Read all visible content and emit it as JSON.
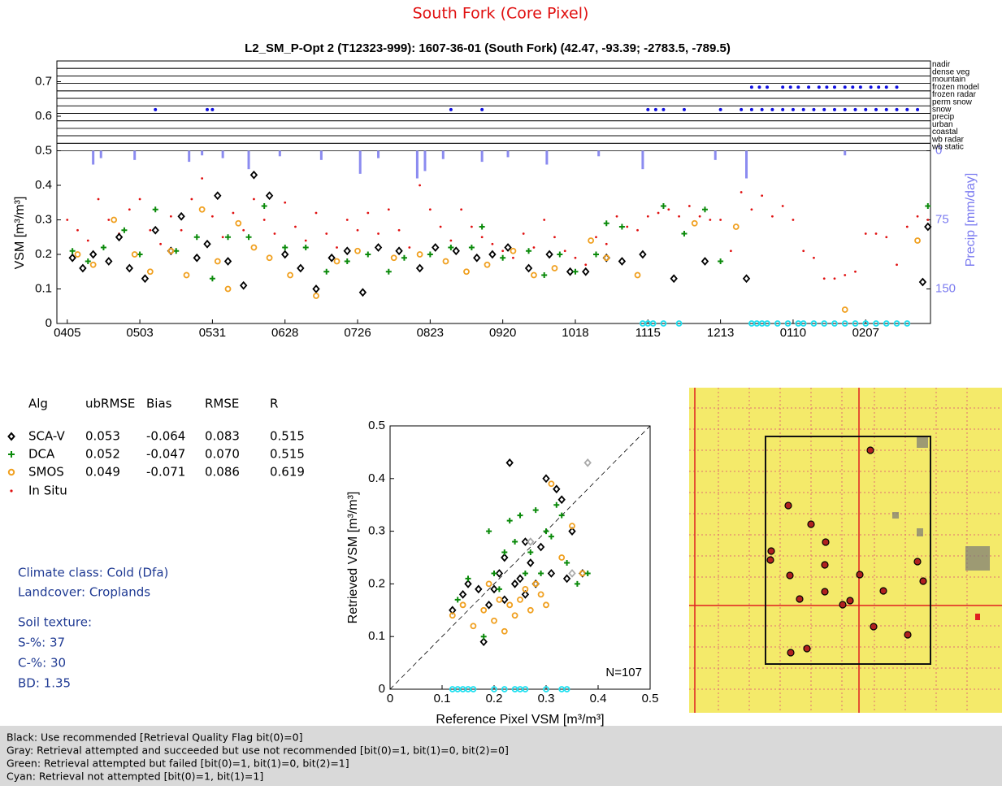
{
  "page_title": "South Fork (Core Pixel)",
  "stats": {
    "header": [
      "Alg",
      "ubRMSE",
      "Bias",
      "RMSE",
      "R"
    ],
    "rows": [
      [
        "SCA-V",
        "0.053",
        "-0.064",
        "0.083",
        "0.515"
      ],
      [
        "DCA",
        "0.052",
        "-0.047",
        "0.070",
        "0.515"
      ],
      [
        "SMOS",
        "0.049",
        "-0.071",
        "0.086",
        "0.619"
      ],
      [
        "In Situ"
      ]
    ]
  },
  "site_info": [
    "Climate class: Cold (Dfa)",
    "Landcover: Croplands",
    "Soil texture:",
    "S-%: 37",
    "C-%: 30",
    "BD: 1.35"
  ],
  "footer": [
    "Black: Use recommended [Retrieval Quality Flag bit(0)=0]",
    "Gray: Retrieval attempted and succeeded but use not recommended [bit(0)=1, bit(1)=0, bit(2)=0]",
    "Green: Retrieval attempted but failed [bit(0)=1, bit(1)=0, bit(2)=1]",
    "Cyan: Retrieval not attempted [bit(0)=1, bit(1)=1]"
  ],
  "chart_data": [
    {
      "type": "scatter",
      "title": "L2_SM_P-Opt 2 (T12323-999): 1607-36-01 (South Fork) (42.47, -93.39; -2783.5, -789.5)",
      "ylabel": "VSM [m³/m³]",
      "y2label": "Precip [mm/day]",
      "xlim": [
        -4,
        333
      ],
      "ylim": [
        0,
        0.76
      ],
      "y2lim": [
        187.5,
        -97.5
      ],
      "xticks": [
        {
          "value": 0,
          "label": "0405"
        },
        {
          "value": 28,
          "label": "0503"
        },
        {
          "value": 56,
          "label": "0531"
        },
        {
          "value": 84,
          "label": "0628"
        },
        {
          "value": 112,
          "label": "0726"
        },
        {
          "value": 140,
          "label": "0823"
        },
        {
          "value": 168,
          "label": "0920"
        },
        {
          "value": 196,
          "label": "1018"
        },
        {
          "value": 224,
          "label": "1115"
        },
        {
          "value": 252,
          "label": "1213"
        },
        {
          "value": 280,
          "label": "0110"
        },
        {
          "value": 308,
          "label": "0207"
        }
      ],
      "yticks": [
        0,
        0.1,
        0.2,
        0.3,
        0.4,
        0.5,
        0.6,
        0.7
      ],
      "y2ticks": [
        0,
        75,
        150
      ],
      "y2color": "#7b7bf0",
      "flag_rows": [
        {
          "label": "nadir",
          "x": []
        },
        {
          "label": "dense veg",
          "x": []
        },
        {
          "label": "mountain",
          "x": []
        },
        {
          "label": "frozen model",
          "x": [
            264,
            267,
            270,
            276,
            279,
            282,
            286,
            290,
            293,
            296,
            300,
            303,
            306,
            310,
            313,
            316,
            320
          ]
        },
        {
          "label": "frozen radar",
          "x": []
        },
        {
          "label": "perm snow",
          "x": []
        },
        {
          "label": "snow",
          "x": [
            34,
            54,
            56,
            148,
            160,
            224,
            227,
            230,
            238,
            252,
            260,
            264,
            268,
            272,
            276,
            280,
            284,
            288,
            292,
            296,
            300,
            304,
            308,
            312,
            316,
            320,
            324,
            328
          ]
        },
        {
          "label": "precip",
          "x": []
        },
        {
          "label": "urban",
          "x": []
        },
        {
          "label": "coastal",
          "x": []
        },
        {
          "label": "wb radar",
          "x": []
        },
        {
          "label": "wb static",
          "x": []
        }
      ],
      "flag_color": "#1010e0",
      "series": [
        {
          "marker": "bar",
          "axis": "y2",
          "color": "#8b8bf0",
          "x": [
            10,
            13,
            26,
            47,
            52,
            60,
            70,
            82,
            98,
            113,
            120,
            135,
            138,
            145,
            160,
            170,
            185,
            205,
            222,
            250,
            262,
            300
          ],
          "values": [
            15,
            8,
            10,
            12,
            5,
            8,
            20,
            6,
            10,
            25,
            8,
            30,
            22,
            9,
            12,
            7,
            15,
            6,
            20,
            10,
            30,
            5
          ]
        },
        {
          "marker": "dot",
          "color": "#e01010",
          "x": [
            0,
            4,
            8,
            12,
            16,
            20,
            24,
            28,
            32,
            36,
            40,
            44,
            48,
            52,
            56,
            60,
            64,
            68,
            72,
            76,
            80,
            84,
            88,
            92,
            96,
            100,
            104,
            108,
            112,
            116,
            120,
            124,
            128,
            132,
            136,
            140,
            144,
            148,
            152,
            156,
            160,
            164,
            168,
            172,
            176,
            180,
            184,
            188,
            192,
            196,
            200,
            204,
            208,
            212,
            216,
            220,
            224,
            228,
            232,
            236,
            240,
            244,
            248,
            252,
            256,
            260,
            264,
            268,
            272,
            276,
            280,
            284,
            288,
            292,
            296,
            300,
            304,
            308,
            312,
            316,
            320,
            324,
            328,
            332
          ],
          "values": [
            0.3,
            0.27,
            0.24,
            0.36,
            0.3,
            0.26,
            0.33,
            0.36,
            0.27,
            0.23,
            0.31,
            0.27,
            0.36,
            0.42,
            0.31,
            0.25,
            0.32,
            0.27,
            0.36,
            0.3,
            0.26,
            0.35,
            0.28,
            0.24,
            0.32,
            0.26,
            0.22,
            0.3,
            0.27,
            0.32,
            0.26,
            0.33,
            0.27,
            0.22,
            0.4,
            0.33,
            0.28,
            0.24,
            0.33,
            0.28,
            0.25,
            0.23,
            0.21,
            0.19,
            0.26,
            0.22,
            0.3,
            0.25,
            0.21,
            0.19,
            0.17,
            0.25,
            0.23,
            0.31,
            0.28,
            0.27,
            0.31,
            0.32,
            0.33,
            0.31,
            0.34,
            0.31,
            0.3,
            0.3,
            0.21,
            0.38,
            0.33,
            0.37,
            0.31,
            0.34,
            0.3,
            0.21,
            0.19,
            0.13,
            0.13,
            0.14,
            0.15,
            0.26,
            0.26,
            0.25,
            0.17,
            0.28,
            0.31,
            0.3
          ]
        },
        {
          "marker": "diamond",
          "color": "#000000",
          "x": [
            2,
            6,
            10,
            16,
            20,
            24,
            30,
            34,
            40,
            44,
            50,
            54,
            58,
            62,
            68,
            72,
            78,
            84,
            90,
            96,
            102,
            108,
            114,
            120,
            128,
            136,
            142,
            150,
            158,
            164,
            170,
            178,
            186,
            194,
            200,
            208,
            214,
            222,
            234,
            246,
            262,
            330,
            332
          ],
          "values": [
            0.19,
            0.16,
            0.2,
            0.18,
            0.25,
            0.16,
            0.13,
            0.27,
            0.21,
            0.31,
            0.19,
            0.23,
            0.37,
            0.18,
            0.11,
            0.43,
            0.37,
            0.2,
            0.16,
            0.1,
            0.19,
            0.21,
            0.09,
            0.22,
            0.21,
            0.16,
            0.22,
            0.21,
            0.19,
            0.2,
            0.22,
            0.16,
            0.2,
            0.15,
            0.15,
            0.19,
            0.18,
            0.2,
            0.13,
            0.18,
            0.13,
            0.12,
            0.28
          ]
        },
        {
          "marker": "plus",
          "color": "#0a8a0a",
          "x": [
            2,
            8,
            14,
            22,
            28,
            34,
            42,
            50,
            56,
            62,
            70,
            76,
            84,
            92,
            100,
            108,
            116,
            124,
            130,
            140,
            148,
            156,
            160,
            168,
            178,
            184,
            190,
            196,
            204,
            208,
            214,
            230,
            238,
            246,
            252,
            332
          ],
          "values": [
            0.21,
            0.18,
            0.22,
            0.27,
            0.2,
            0.33,
            0.21,
            0.25,
            0.13,
            0.25,
            0.25,
            0.34,
            0.22,
            0.22,
            0.15,
            0.18,
            0.2,
            0.15,
            0.19,
            0.2,
            0.22,
            0.22,
            0.28,
            0.19,
            0.21,
            0.14,
            0.2,
            0.15,
            0.2,
            0.29,
            0.28,
            0.34,
            0.26,
            0.33,
            0.18,
            0.34
          ]
        },
        {
          "marker": "circle",
          "color": "#f0a020",
          "x": [
            4,
            10,
            18,
            26,
            32,
            40,
            46,
            52,
            58,
            62,
            66,
            72,
            78,
            86,
            96,
            104,
            112,
            126,
            136,
            146,
            154,
            162,
            172,
            180,
            188,
            202,
            208,
            220,
            242,
            258,
            300,
            328
          ],
          "values": [
            0.2,
            0.17,
            0.3,
            0.2,
            0.15,
            0.21,
            0.14,
            0.33,
            0.18,
            0.1,
            0.29,
            0.22,
            0.19,
            0.14,
            0.08,
            0.18,
            0.21,
            0.19,
            0.2,
            0.18,
            0.15,
            0.17,
            0.21,
            0.14,
            0.16,
            0.24,
            0.19,
            0.14,
            0.29,
            0.28,
            0.04,
            0.24
          ]
        },
        {
          "marker": "circle",
          "color": "#20e0f0",
          "x": [
            222,
            224,
            226,
            230,
            236,
            264,
            266,
            268,
            270,
            274,
            278,
            282,
            284,
            288,
            292,
            296,
            300,
            304,
            308,
            312,
            316,
            320,
            324
          ],
          "values": [
            0,
            0,
            0,
            0,
            0,
            0,
            0,
            0,
            0,
            0,
            0,
            0,
            0,
            0,
            0,
            0,
            0,
            0,
            0,
            0,
            0,
            0,
            0
          ]
        }
      ]
    },
    {
      "type": "scatter",
      "xlabel": "Reference Pixel VSM [m³/m³]",
      "ylabel": "Retrieved VSM [m³/m³]",
      "annotation": "N=107",
      "xlim": [
        0,
        0.5
      ],
      "ylim": [
        0,
        0.5
      ],
      "xticks": [
        0,
        0.1,
        0.2,
        0.3,
        0.4,
        0.5
      ],
      "yticks": [
        0,
        0.1,
        0.2,
        0.3,
        0.4,
        0.5
      ],
      "series": [
        {
          "marker": "diamond",
          "color": "#000000",
          "x": [
            0.12,
            0.14,
            0.15,
            0.18,
            0.19,
            0.2,
            0.21,
            0.22,
            0.23,
            0.24,
            0.25,
            0.26,
            0.27,
            0.28,
            0.29,
            0.3,
            0.31,
            0.32,
            0.33,
            0.34,
            0.35,
            0.37,
            0.17,
            0.22,
            0.26
          ],
          "values": [
            0.15,
            0.18,
            0.2,
            0.09,
            0.16,
            0.19,
            0.22,
            0.17,
            0.43,
            0.2,
            0.21,
            0.18,
            0.24,
            0.2,
            0.27,
            0.4,
            0.22,
            0.38,
            0.36,
            0.21,
            0.3,
            0.22,
            0.19,
            0.25,
            0.28
          ]
        },
        {
          "marker": "circle",
          "color": "#f0a020",
          "x": [
            0.12,
            0.14,
            0.16,
            0.18,
            0.2,
            0.21,
            0.22,
            0.23,
            0.24,
            0.25,
            0.26,
            0.27,
            0.28,
            0.29,
            0.3,
            0.31,
            0.33,
            0.35,
            0.37,
            0.19
          ],
          "values": [
            0.14,
            0.16,
            0.12,
            0.15,
            0.13,
            0.17,
            0.11,
            0.16,
            0.14,
            0.17,
            0.19,
            0.15,
            0.2,
            0.18,
            0.16,
            0.39,
            0.25,
            0.31,
            0.22,
            0.2
          ]
        },
        {
          "marker": "plus",
          "color": "#0a8a0a",
          "x": [
            0.13,
            0.15,
            0.18,
            0.19,
            0.2,
            0.22,
            0.23,
            0.24,
            0.25,
            0.27,
            0.28,
            0.29,
            0.3,
            0.31,
            0.32,
            0.33,
            0.34,
            0.36,
            0.38,
            0.21,
            0.26
          ],
          "values": [
            0.17,
            0.21,
            0.1,
            0.3,
            0.22,
            0.26,
            0.32,
            0.28,
            0.33,
            0.26,
            0.34,
            0.22,
            0.3,
            0.29,
            0.35,
            0.33,
            0.24,
            0.2,
            0.22,
            0.19,
            0.22
          ]
        },
        {
          "marker": "diamond",
          "color": "#aaaaaa",
          "x": [
            0.38,
            0.27,
            0.35
          ],
          "values": [
            0.43,
            0.28,
            0.22
          ]
        },
        {
          "marker": "circle",
          "color": "#20e0f0",
          "x": [
            0.12,
            0.13,
            0.14,
            0.15,
            0.16,
            0.2,
            0.22,
            0.24,
            0.25,
            0.26,
            0.3,
            0.33,
            0.34
          ],
          "values": [
            0,
            0,
            0,
            0,
            0,
            0,
            0,
            0,
            0,
            0,
            0,
            0,
            0
          ]
        }
      ]
    }
  ]
}
